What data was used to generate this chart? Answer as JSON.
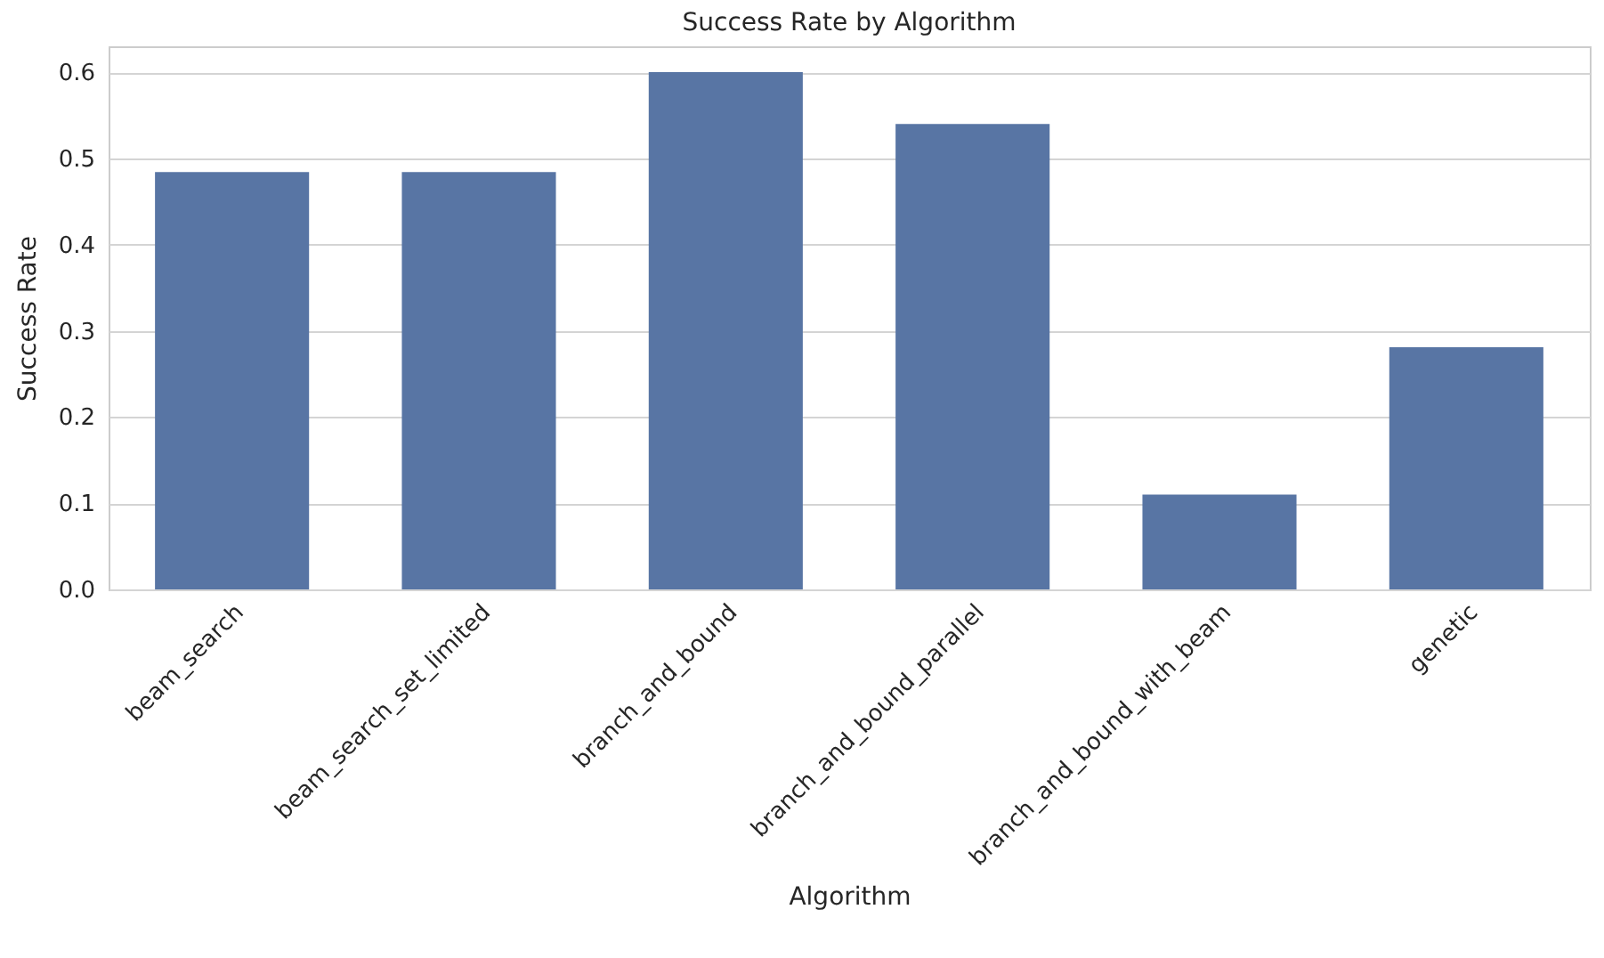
{
  "chart_data": {
    "type": "bar",
    "title": "Success Rate by Algorithm",
    "xlabel": "Algorithm",
    "ylabel": "Success Rate",
    "categories": [
      "beam_search",
      "beam_search_set_limited",
      "branch_and_bound",
      "branch_and_bound_parallel",
      "branch_and_bound_with_beam",
      "genetic"
    ],
    "values": [
      0.484,
      0.484,
      0.6,
      0.54,
      0.11,
      0.281
    ],
    "color": "#5875a4",
    "ylim": [
      0,
      0.63
    ],
    "yticks": [
      {
        "value": 0,
        "label": "0.0"
      },
      0.1,
      0.2,
      0.3,
      0.4,
      0.5,
      0.6
    ],
    "grid": "y"
  }
}
